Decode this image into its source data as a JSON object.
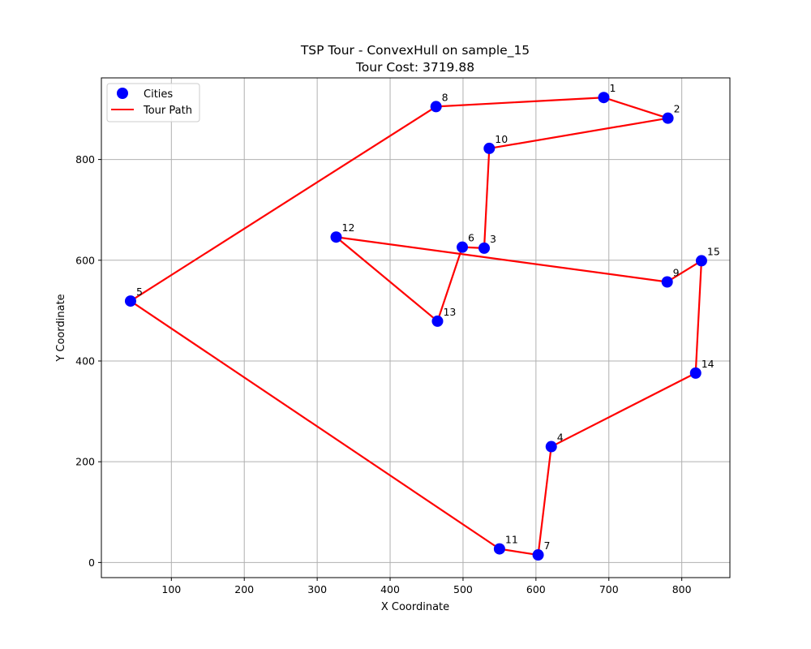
{
  "chart_data": {
    "type": "scatter",
    "title": "TSP Tour - ConvexHull on sample_15",
    "subtitle": "Tour Cost: 3719.88",
    "xlabel": "X Coordinate",
    "ylabel": "Y Coordinate",
    "xlim": [
      4,
      866
    ],
    "ylim": [
      -30,
      962
    ],
    "x_ticks": [
      100,
      200,
      300,
      400,
      500,
      600,
      700,
      800
    ],
    "y_ticks": [
      0,
      200,
      400,
      600,
      800
    ],
    "grid": true,
    "legend_position": "top-left",
    "legend": [
      {
        "label": "Cities",
        "kind": "marker",
        "color": "#0000ff"
      },
      {
        "label": "Tour Path",
        "kind": "line",
        "color": "#ff0000"
      }
    ],
    "series": [
      {
        "name": "Cities",
        "kind": "scatter",
        "color": "#0000ff",
        "points": [
          {
            "label": "1",
            "x": 693,
            "y": 923
          },
          {
            "label": "2",
            "x": 781,
            "y": 882
          },
          {
            "label": "3",
            "x": 529,
            "y": 624
          },
          {
            "label": "4",
            "x": 621,
            "y": 230
          },
          {
            "label": "5",
            "x": 44,
            "y": 519
          },
          {
            "label": "6",
            "x": 499,
            "y": 626
          },
          {
            "label": "7",
            "x": 603,
            "y": 15
          },
          {
            "label": "8",
            "x": 463,
            "y": 905
          },
          {
            "label": "9",
            "x": 780,
            "y": 557
          },
          {
            "label": "10",
            "x": 536,
            "y": 822
          },
          {
            "label": "11",
            "x": 550,
            "y": 27
          },
          {
            "label": "12",
            "x": 326,
            "y": 646
          },
          {
            "label": "13",
            "x": 465,
            "y": 479
          },
          {
            "label": "14",
            "x": 819,
            "y": 376
          },
          {
            "label": "15",
            "x": 827,
            "y": 599
          }
        ]
      },
      {
        "name": "Tour Path",
        "kind": "line",
        "color": "#ff0000",
        "order": [
          "5",
          "8",
          "1",
          "2",
          "10",
          "3",
          "6",
          "13",
          "12",
          "9",
          "15",
          "14",
          "4",
          "7",
          "11",
          "5"
        ]
      }
    ]
  }
}
